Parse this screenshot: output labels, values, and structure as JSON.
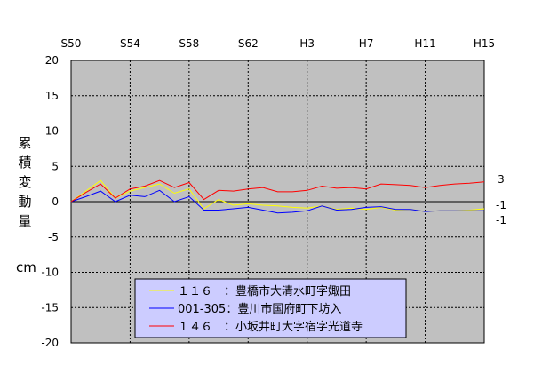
{
  "chart_data": {
    "type": "line",
    "ylabel_chars": [
      "累",
      "積",
      "変",
      "動",
      "量"
    ],
    "yunit": "cm",
    "ylim": [
      -20,
      20
    ],
    "yticks": [
      20,
      15,
      10,
      5,
      0,
      -5,
      -10,
      -15,
      -20
    ],
    "xlim": [
      1975,
      2003
    ],
    "xticks": [
      {
        "label": "S50",
        "x": 1975
      },
      {
        "label": "S54",
        "x": 1979
      },
      {
        "label": "S58",
        "x": 1983
      },
      {
        "label": "S62",
        "x": 1987
      },
      {
        "label": "H3",
        "x": 1991
      },
      {
        "label": "H7",
        "x": 1995
      },
      {
        "label": "H11",
        "x": 1999
      },
      {
        "label": "H15",
        "x": 2003
      }
    ],
    "grid": true,
    "legend_position": "bottom-center",
    "end_labels": [
      "3",
      "-1",
      "-1"
    ],
    "series": [
      {
        "name": "１１６　：豊橋市大清水町字娵田",
        "color": "#ffff00",
        "x": [
          1975,
          1976,
          1977,
          1978,
          1979,
          1980,
          1981,
          1982,
          1983,
          1984,
          1985,
          1986,
          1987,
          1988,
          1989,
          1990,
          1991,
          1992,
          1993,
          1994,
          1995,
          1996,
          1997,
          1998,
          1999,
          2000,
          2001,
          2002,
          2003
        ],
        "values": [
          0,
          1.5,
          3,
          0.5,
          1.5,
          2,
          2.5,
          1.2,
          1.8,
          -1,
          0.3,
          -0.5,
          -0.3,
          -0.5,
          -0.6,
          -0.8,
          -0.9,
          -0.6,
          -1.1,
          -0.9,
          -1.1,
          -0.8,
          -1.2,
          -1.1,
          -1.4,
          -1.3,
          -1.3,
          -1.2,
          -1.0
        ]
      },
      {
        "name": "001-305：豊川市国府町下坊入",
        "color": "#0000ff",
        "x": [
          1975,
          1976,
          1977,
          1978,
          1979,
          1980,
          1981,
          1982,
          1983,
          1984,
          1985,
          1986,
          1987,
          1988,
          1989,
          1990,
          1991,
          1992,
          1993,
          1994,
          1995,
          1996,
          1997,
          1998,
          1999,
          2000,
          2001,
          2002,
          2003
        ],
        "values": [
          0,
          0.7,
          1.5,
          0,
          0.9,
          0.7,
          1.6,
          0,
          0.7,
          -1.2,
          -1.2,
          -1.0,
          -0.8,
          -1.2,
          -1.6,
          -1.5,
          -1.3,
          -0.6,
          -1.2,
          -1.1,
          -0.8,
          -0.7,
          -1.1,
          -1.1,
          -1.4,
          -1.3,
          -1.3,
          -1.3,
          -1.3
        ]
      },
      {
        "name": "１４６　：小坂井町大字宿字光道寺",
        "color": "#ff0000",
        "x": [
          1975,
          1976,
          1977,
          1978,
          1979,
          1980,
          1981,
          1982,
          1983,
          1984,
          1985,
          1986,
          1987,
          1988,
          1989,
          1990,
          1991,
          1992,
          1993,
          1994,
          1995,
          1996,
          1997,
          1998,
          1999,
          2000,
          2001,
          2002,
          2003
        ],
        "values": [
          0,
          1.3,
          2.5,
          0.5,
          1.8,
          2.2,
          3,
          2,
          2.7,
          0.3,
          1.6,
          1.5,
          1.8,
          2,
          1.4,
          1.4,
          1.6,
          2.2,
          1.9,
          2,
          1.8,
          2.5,
          2.4,
          2.3,
          2,
          2.3,
          2.5,
          2.6,
          2.8
        ]
      }
    ]
  }
}
